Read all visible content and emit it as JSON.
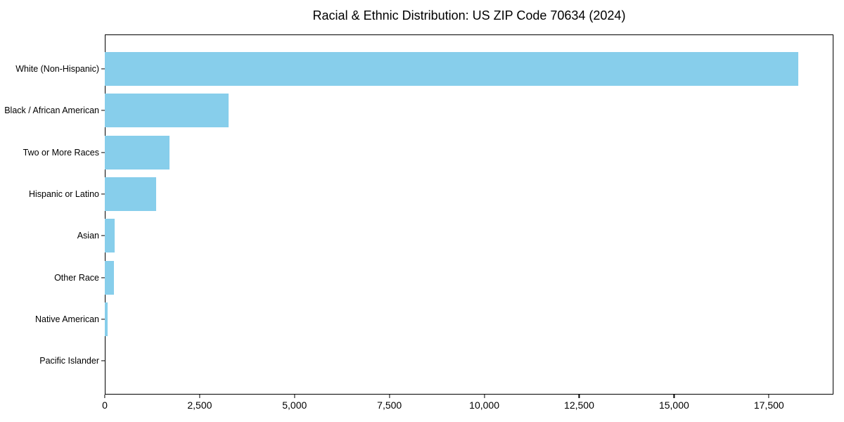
{
  "chart_data": {
    "type": "bar",
    "orientation": "horizontal",
    "title": "Racial & Ethnic Distribution: US ZIP Code 70634 (2024)",
    "categories": [
      "White (Non-Hispanic)",
      "Black / African American",
      "Two or More Races",
      "Hispanic or Latino",
      "Asian",
      "Other Race",
      "Native American",
      "Pacific Islander"
    ],
    "values": [
      18280,
      3260,
      1705,
      1355,
      265,
      240,
      70,
      0
    ],
    "xlabel": "",
    "ylabel": "",
    "xlim": [
      0,
      19200
    ],
    "x_ticks": [
      0,
      2500,
      5000,
      7500,
      10000,
      12500,
      15000,
      17500
    ],
    "x_tick_labels": [
      "0",
      "2,500",
      "5,000",
      "7,500",
      "10,000",
      "12,500",
      "15,000",
      "17,500"
    ],
    "grid": false,
    "legend": null,
    "bar_color": "#87CEEB",
    "frame_color": "#000000",
    "background_color": "#FFFFFF"
  }
}
